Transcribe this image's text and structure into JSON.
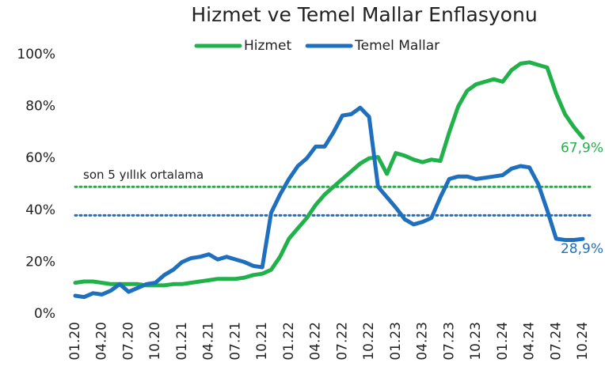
{
  "chart_data": {
    "type": "line",
    "title": "Hizmet ve Temel Mallar Enflasyonu",
    "categories": [
      "01.20",
      null,
      null,
      "04.20",
      null,
      null,
      "07.20",
      null,
      null,
      "10.20",
      null,
      null,
      "01.21",
      null,
      null,
      "04.21",
      null,
      null,
      "07.21",
      null,
      null,
      "10.21",
      null,
      null,
      "01.22",
      null,
      null,
      "04.22",
      null,
      null,
      "07.22",
      null,
      null,
      "10.22",
      null,
      null,
      "01.23",
      null,
      null,
      "04.23",
      null,
      null,
      "07.23",
      null,
      null,
      "10.23",
      null,
      null,
      "01.24",
      null,
      null,
      "04.24",
      null,
      null,
      "07.24",
      null,
      null,
      "10.24"
    ],
    "series": [
      {
        "name": "Hizmet",
        "color": "#21b14b",
        "end_label": "67,9%",
        "values": [
          12,
          12.5,
          12.5,
          12,
          11.5,
          11.5,
          11.5,
          11.5,
          11,
          11,
          11,
          11.5,
          11.5,
          12,
          12.5,
          13,
          13.5,
          13.5,
          13.5,
          14,
          15,
          15.5,
          17,
          22,
          29,
          33,
          37,
          42,
          46,
          49,
          52,
          55,
          58,
          60,
          60.5,
          54,
          62,
          61,
          59.5,
          58.5,
          59.5,
          59,
          70,
          80,
          86,
          88.5,
          89.5,
          90.5,
          89.5,
          94,
          96.5,
          97,
          96,
          95,
          85,
          77,
          72,
          67.9
        ]
      },
      {
        "name": "Temel Mallar",
        "color": "#1f6fbf",
        "end_label": "28,9%",
        "values": [
          7,
          6.5,
          8,
          7.5,
          9,
          11.5,
          8.5,
          10,
          11.5,
          12,
          15,
          17,
          20,
          21.5,
          22,
          23,
          21,
          22,
          21,
          20,
          18.5,
          18,
          39,
          46,
          52,
          57,
          60,
          64.5,
          64.5,
          70,
          76.5,
          77,
          79.5,
          76,
          49,
          45,
          41,
          36.5,
          34.5,
          35.5,
          37,
          45,
          52,
          53,
          53,
          52,
          52.5,
          53,
          53.5,
          56,
          57,
          56.5,
          50,
          40,
          29,
          28.5,
          28.5,
          28.9
        ]
      }
    ],
    "reference_lines": [
      {
        "value": 49,
        "color": "#21b14b",
        "label": "son 5 yıllık ortalama"
      },
      {
        "value": 38,
        "color": "#1f6fbf"
      }
    ],
    "ylim": [
      0,
      100
    ],
    "yticks": [
      {
        "value": 0,
        "label": "0%"
      },
      {
        "value": 20,
        "label": "20%"
      },
      {
        "value": 40,
        "label": "40%"
      },
      {
        "value": 60,
        "label": "60%"
      },
      {
        "value": 80,
        "label": "80%"
      },
      {
        "value": 100,
        "label": "100%"
      }
    ],
    "grid": false,
    "legend": "top"
  }
}
